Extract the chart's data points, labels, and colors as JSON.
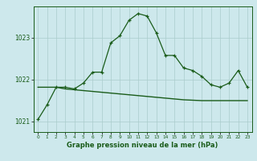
{
  "title": "Graphe pression niveau de la mer (hPa)",
  "background_color": "#cde8ec",
  "grid_color": "#aacccc",
  "line_color": "#1a5c1a",
  "xlim": [
    -0.5,
    23.5
  ],
  "ylim": [
    1020.75,
    1023.75
  ],
  "yticks": [
    1021,
    1022,
    1023
  ],
  "xticks": [
    0,
    1,
    2,
    3,
    4,
    5,
    6,
    7,
    8,
    9,
    10,
    11,
    12,
    13,
    14,
    15,
    16,
    17,
    18,
    19,
    20,
    21,
    22,
    23
  ],
  "series1_x": [
    0,
    1,
    2,
    3,
    4,
    5,
    6,
    7,
    8,
    9,
    10,
    11,
    12,
    13,
    14,
    15,
    16,
    17,
    18,
    19,
    20,
    21,
    22,
    23
  ],
  "series1_y": [
    1021.05,
    1021.4,
    1021.82,
    1021.82,
    1021.78,
    1021.92,
    1022.18,
    1022.18,
    1022.88,
    1023.05,
    1023.42,
    1023.58,
    1023.52,
    1023.12,
    1022.58,
    1022.58,
    1022.28,
    1022.22,
    1022.08,
    1021.88,
    1021.82,
    1021.92,
    1022.22,
    1021.82
  ],
  "series2_x": [
    0,
    1,
    2,
    3,
    4,
    5,
    6,
    7,
    8,
    9,
    10,
    11,
    12,
    13,
    14,
    15,
    16,
    17,
    18,
    19,
    20,
    21,
    22,
    23
  ],
  "series2_y": [
    1021.82,
    1021.82,
    1021.82,
    1021.78,
    1021.76,
    1021.74,
    1021.72,
    1021.7,
    1021.68,
    1021.66,
    1021.64,
    1021.62,
    1021.6,
    1021.58,
    1021.56,
    1021.54,
    1021.52,
    1021.51,
    1021.5,
    1021.5,
    1021.5,
    1021.5,
    1021.5,
    1021.5
  ]
}
